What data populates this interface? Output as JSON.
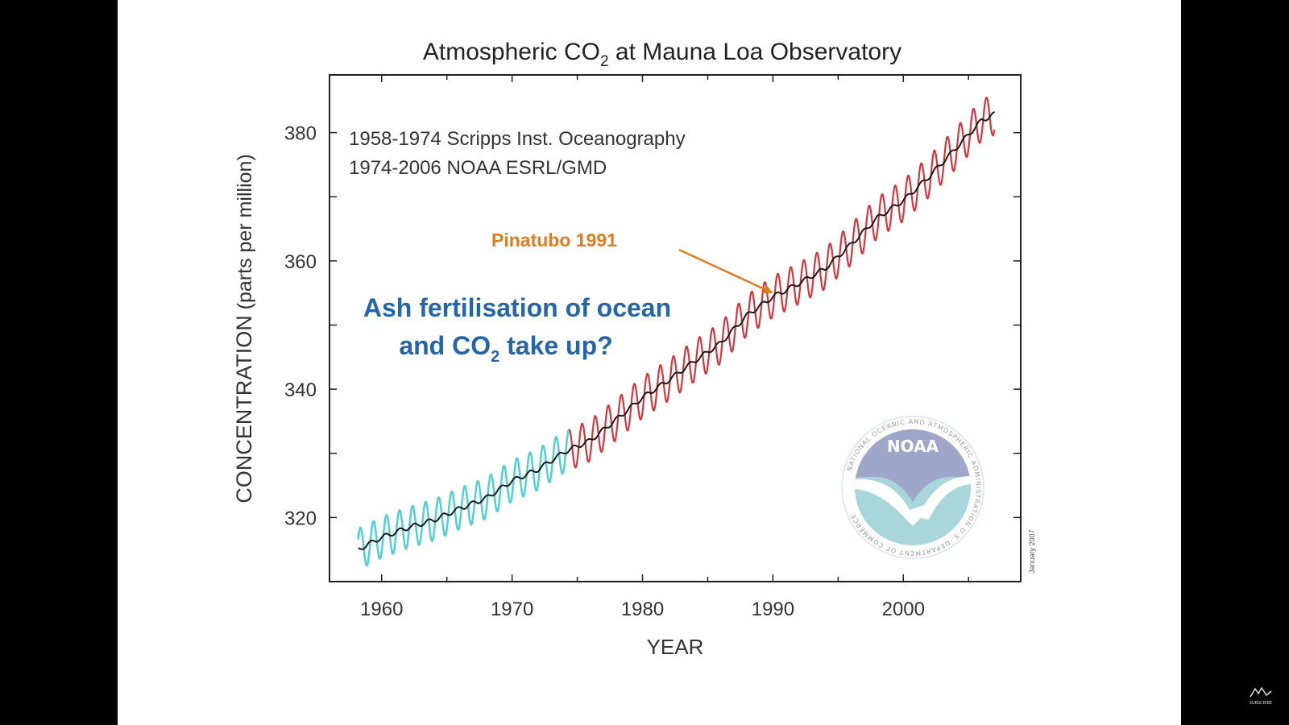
{
  "chart_data": {
    "type": "line",
    "title_main": "Atmospheric CO",
    "title_sub": "2",
    "title_rest": " at Mauna Loa Observatory",
    "xlabel": "YEAR",
    "ylabel_bold": "CONCENTRATION",
    "ylabel_rest": " (parts per million)",
    "xlim": [
      1956,
      2009
    ],
    "ylim": [
      310,
      389
    ],
    "x_ticks": [
      1960,
      1970,
      1980,
      1990,
      2000
    ],
    "y_ticks": [
      320,
      340,
      360,
      380
    ],
    "legend": [
      "1958-1974 Scripps Inst. Oceanography",
      "1974-2006 NOAA ESRL/GMD"
    ],
    "series": [
      {
        "name": "1958-1974 Scripps Inst. Oceanography",
        "color": "#4fd0d4",
        "x_start": 1958.2,
        "x_end": 1974.4
      },
      {
        "name": "1974-2006 NOAA ESRL/GMD",
        "color": "#d8343c",
        "x_start": 1974.4,
        "x_end": 2007.0
      },
      {
        "name": "annual mean",
        "color": "#1a1a1a"
      }
    ],
    "annual_mean": {
      "x": [
        1958.2,
        1960,
        1962,
        1964,
        1966,
        1968,
        1970,
        1972,
        1974,
        1976,
        1978,
        1980,
        1982,
        1984,
        1986,
        1988,
        1990,
        1992,
        1994,
        1996,
        1998,
        2000,
        2002,
        2004,
        2006,
        2007
      ],
      "y": [
        315.0,
        316.9,
        318.4,
        319.6,
        321.4,
        323.0,
        325.7,
        327.5,
        330.2,
        332.0,
        335.3,
        338.7,
        341.4,
        344.4,
        347.2,
        351.5,
        354.4,
        356.5,
        358.8,
        362.6,
        366.7,
        369.4,
        373.2,
        377.5,
        381.9,
        382.9
      ]
    },
    "seasonal_amplitude_ppm": 3.2,
    "annotations": {
      "pinatubo_label": "Pinatubo 1991",
      "pinatubo_arrow_x": 1990.0,
      "pinatubo_arrow_y": 355,
      "question_line1": "Ash fertilisation of ocean",
      "question_line2_a": "and CO",
      "question_line2_sub": "2",
      "question_line2_b": " take up?"
    },
    "date_stamp": "January 2007",
    "grid": false
  },
  "logo": {
    "text": "NOAA",
    "ring_text": "NATIONAL OCEANIC AND ATMOSPHERIC ADMINISTRATION U.S. DEPARTMENT OF COMMERCE",
    "colors": {
      "upper": "#9ea7c9",
      "lower": "#a9d6da",
      "bird": "#ffffff"
    }
  },
  "corner_badge": "SUBSCRIBE",
  "colors": {
    "title": "#222222",
    "axis": "#222222",
    "tick_label": "#333333",
    "annotation_orange": "#e07b1f",
    "annotation_blue": "#2466a8"
  }
}
